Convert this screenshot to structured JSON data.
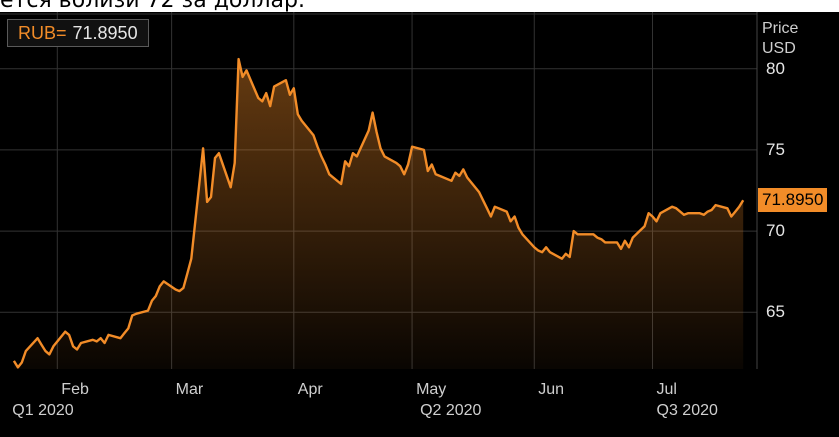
{
  "caption": "ется вблизи 72 за доллар.",
  "ticker": {
    "symbol": "RUB=",
    "value": "71.8950"
  },
  "colors": {
    "line": "#f28c28",
    "background": "#000000",
    "grid": "#333333",
    "text": "#e6e6e6"
  },
  "chart_data": {
    "type": "area",
    "title": "",
    "ylabel_lines": [
      "Price",
      "USD"
    ],
    "yticks": [
      65,
      70,
      75,
      80
    ],
    "ylim": [
      61.5,
      83.5
    ],
    "last_value_label": "71.8950",
    "last_value": 71.895,
    "x_months": [
      {
        "label": "Feb",
        "date": "2020-02-01"
      },
      {
        "label": "Mar",
        "date": "2020-03-01"
      },
      {
        "label": "Apr",
        "date": "2020-04-01"
      },
      {
        "label": "May",
        "date": "2020-05-01"
      },
      {
        "label": "Jun",
        "date": "2020-06-01"
      },
      {
        "label": "Jul",
        "date": "2020-07-01"
      }
    ],
    "x_quarters": [
      {
        "label": "Q1 2020",
        "date": "2020-02-01"
      },
      {
        "label": "Q2 2020",
        "date": "2020-05-01"
      },
      {
        "label": "Q3 2020",
        "date": "2020-07-01"
      }
    ],
    "grid": true,
    "series": [
      {
        "points": [
          [
            "2020-01-21",
            62.0
          ],
          [
            "2020-01-22",
            61.6
          ],
          [
            "2020-01-23",
            61.9
          ],
          [
            "2020-01-24",
            62.6
          ],
          [
            "2020-01-27",
            63.4
          ],
          [
            "2020-01-28",
            63.0
          ],
          [
            "2020-01-29",
            62.6
          ],
          [
            "2020-01-30",
            62.4
          ],
          [
            "2020-01-31",
            62.9
          ],
          [
            "2020-02-03",
            63.8
          ],
          [
            "2020-02-04",
            63.6
          ],
          [
            "2020-02-05",
            62.9
          ],
          [
            "2020-02-06",
            62.7
          ],
          [
            "2020-02-07",
            63.1
          ],
          [
            "2020-02-10",
            63.3
          ],
          [
            "2020-02-11",
            63.2
          ],
          [
            "2020-02-12",
            63.4
          ],
          [
            "2020-02-13",
            63.1
          ],
          [
            "2020-02-14",
            63.6
          ],
          [
            "2020-02-17",
            63.4
          ],
          [
            "2020-02-18",
            63.7
          ],
          [
            "2020-02-19",
            64.0
          ],
          [
            "2020-02-20",
            64.8
          ],
          [
            "2020-02-21",
            64.9
          ],
          [
            "2020-02-24",
            65.1
          ],
          [
            "2020-02-25",
            65.7
          ],
          [
            "2020-02-26",
            66.0
          ],
          [
            "2020-02-27",
            66.6
          ],
          [
            "2020-02-28",
            66.9
          ],
          [
            "2020-03-02",
            66.4
          ],
          [
            "2020-03-03",
            66.3
          ],
          [
            "2020-03-04",
            66.5
          ],
          [
            "2020-03-05",
            67.4
          ],
          [
            "2020-03-06",
            68.3
          ],
          [
            "2020-03-09",
            75.1
          ],
          [
            "2020-03-10",
            71.8
          ],
          [
            "2020-03-11",
            72.1
          ],
          [
            "2020-03-12",
            74.5
          ],
          [
            "2020-03-13",
            74.8
          ],
          [
            "2020-03-16",
            72.7
          ],
          [
            "2020-03-17",
            74.2
          ],
          [
            "2020-03-18",
            80.6
          ],
          [
            "2020-03-19",
            79.5
          ],
          [
            "2020-03-20",
            79.9
          ],
          [
            "2020-03-23",
            78.2
          ],
          [
            "2020-03-24",
            78.0
          ],
          [
            "2020-03-25",
            78.5
          ],
          [
            "2020-03-26",
            77.7
          ],
          [
            "2020-03-27",
            78.9
          ],
          [
            "2020-03-30",
            79.3
          ],
          [
            "2020-03-31",
            78.4
          ],
          [
            "2020-04-01",
            78.8
          ],
          [
            "2020-04-02",
            77.2
          ],
          [
            "2020-04-03",
            76.8
          ],
          [
            "2020-04-06",
            75.9
          ],
          [
            "2020-04-07",
            75.2
          ],
          [
            "2020-04-08",
            74.6
          ],
          [
            "2020-04-09",
            74.1
          ],
          [
            "2020-04-10",
            73.5
          ],
          [
            "2020-04-13",
            72.9
          ],
          [
            "2020-04-14",
            74.3
          ],
          [
            "2020-04-15",
            74.0
          ],
          [
            "2020-04-16",
            74.8
          ],
          [
            "2020-04-17",
            74.6
          ],
          [
            "2020-04-20",
            76.2
          ],
          [
            "2020-04-21",
            77.3
          ],
          [
            "2020-04-22",
            76.1
          ],
          [
            "2020-04-23",
            75.1
          ],
          [
            "2020-04-24",
            74.6
          ],
          [
            "2020-04-27",
            74.2
          ],
          [
            "2020-04-28",
            74.0
          ],
          [
            "2020-04-29",
            73.5
          ],
          [
            "2020-04-30",
            74.1
          ],
          [
            "2020-05-01",
            75.2
          ],
          [
            "2020-05-04",
            75.0
          ],
          [
            "2020-05-05",
            73.7
          ],
          [
            "2020-05-06",
            74.1
          ],
          [
            "2020-05-07",
            73.5
          ],
          [
            "2020-05-08",
            73.4
          ],
          [
            "2020-05-11",
            73.1
          ],
          [
            "2020-05-12",
            73.6
          ],
          [
            "2020-05-13",
            73.4
          ],
          [
            "2020-05-14",
            73.8
          ],
          [
            "2020-05-15",
            73.3
          ],
          [
            "2020-05-18",
            72.4
          ],
          [
            "2020-05-19",
            71.9
          ],
          [
            "2020-05-20",
            71.4
          ],
          [
            "2020-05-21",
            70.9
          ],
          [
            "2020-05-22",
            71.5
          ],
          [
            "2020-05-25",
            71.2
          ],
          [
            "2020-05-26",
            70.6
          ],
          [
            "2020-05-27",
            70.9
          ],
          [
            "2020-05-28",
            70.2
          ],
          [
            "2020-05-29",
            69.8
          ],
          [
            "2020-06-01",
            69.0
          ],
          [
            "2020-06-02",
            68.8
          ],
          [
            "2020-06-03",
            68.7
          ],
          [
            "2020-06-04",
            69.0
          ],
          [
            "2020-06-05",
            68.7
          ],
          [
            "2020-06-08",
            68.3
          ],
          [
            "2020-06-09",
            68.6
          ],
          [
            "2020-06-10",
            68.4
          ],
          [
            "2020-06-11",
            70.0
          ],
          [
            "2020-06-12",
            69.8
          ],
          [
            "2020-06-15",
            69.8
          ],
          [
            "2020-06-16",
            69.8
          ],
          [
            "2020-06-17",
            69.6
          ],
          [
            "2020-06-18",
            69.5
          ],
          [
            "2020-06-19",
            69.3
          ],
          [
            "2020-06-22",
            69.3
          ],
          [
            "2020-06-23",
            68.9
          ],
          [
            "2020-06-24",
            69.4
          ],
          [
            "2020-06-25",
            69.0
          ],
          [
            "2020-06-26",
            69.6
          ],
          [
            "2020-06-29",
            70.3
          ],
          [
            "2020-06-30",
            71.1
          ],
          [
            "2020-07-01",
            70.9
          ],
          [
            "2020-07-02",
            70.6
          ],
          [
            "2020-07-03",
            71.1
          ],
          [
            "2020-07-06",
            71.5
          ],
          [
            "2020-07-07",
            71.4
          ],
          [
            "2020-07-08",
            71.2
          ],
          [
            "2020-07-09",
            71.0
          ],
          [
            "2020-07-10",
            71.1
          ],
          [
            "2020-07-13",
            71.1
          ],
          [
            "2020-07-14",
            71.0
          ],
          [
            "2020-07-15",
            71.2
          ],
          [
            "2020-07-16",
            71.3
          ],
          [
            "2020-07-17",
            71.6
          ],
          [
            "2020-07-20",
            71.4
          ],
          [
            "2020-07-21",
            70.9
          ],
          [
            "2020-07-22",
            71.2
          ],
          [
            "2020-07-23",
            71.5
          ],
          [
            "2020-07-24",
            71.895
          ]
        ]
      }
    ]
  }
}
